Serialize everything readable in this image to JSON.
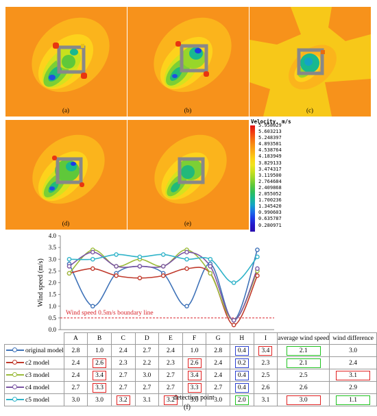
{
  "panels": [
    {
      "label": "(a)"
    },
    {
      "label": "(b)"
    },
    {
      "label": "(c)"
    },
    {
      "label": "(d)"
    },
    {
      "label": "(e)"
    }
  ],
  "legend": {
    "title": "Velocity, m/s",
    "values": [
      "5.958029",
      "5.603213",
      "5.248397",
      "4.893581",
      "4.538764",
      "4.183949",
      "3.829133",
      "3.474317",
      "3.119500",
      "2.764684",
      "2.409868",
      "2.055052",
      "1.700236",
      "1.345420",
      "0.990603",
      "0.635787",
      "0.280971"
    ],
    "colors": [
      "#e01010",
      "#f23a10",
      "#f76a10",
      "#f99212",
      "#fcb015",
      "#fdd215",
      "#f0e41e",
      "#c9e01e",
      "#98d62a",
      "#5fc83a",
      "#2fbf59",
      "#18b890",
      "#14a3c6",
      "#1a6ee8",
      "#1d3ae6",
      "#2418c8",
      "#2a0fb0"
    ]
  },
  "chart_data": {
    "type": "line",
    "categories": [
      "A",
      "B",
      "C",
      "D",
      "E",
      "F",
      "G",
      "H",
      "I"
    ],
    "ylabel": "Wind speed (m/s)",
    "xlabel": "detection point",
    "ylim": [
      0.0,
      4.0
    ],
    "yticks": [
      "0.0",
      "0.5",
      "1.0",
      "1.5",
      "2.0",
      "2.5",
      "3.0",
      "3.5",
      "4.0"
    ],
    "threshold": {
      "value": 0.5,
      "label": "Wind speed 0.5m/s boundary line",
      "color": "#d9232a"
    },
    "series": [
      {
        "name": "original model",
        "color": "#3e72b8",
        "values": [
          2.8,
          1.0,
          2.4,
          2.7,
          2.4,
          1.0,
          2.8,
          0.4,
          3.4
        ]
      },
      {
        "name": "c2 model",
        "color": "#c0392b",
        "values": [
          2.4,
          2.6,
          2.3,
          2.2,
          2.3,
          2.6,
          2.4,
          0.2,
          2.3
        ]
      },
      {
        "name": "c3 model",
        "color": "#9bbb3b",
        "values": [
          2.4,
          3.4,
          2.7,
          3.0,
          2.7,
          3.4,
          2.4,
          0.4,
          2.5
        ]
      },
      {
        "name": "c4 model",
        "color": "#7b55a3",
        "values": [
          2.7,
          3.3,
          2.7,
          2.7,
          2.7,
          3.3,
          2.7,
          0.4,
          2.6
        ]
      },
      {
        "name": "c5 model",
        "color": "#2fb3c9",
        "values": [
          3.0,
          3.0,
          3.2,
          3.1,
          3.2,
          3.0,
          3.0,
          2.0,
          3.1
        ]
      }
    ]
  },
  "table": {
    "headers": [
      "A",
      "B",
      "C",
      "D",
      "E",
      "F",
      "G",
      "H",
      "I",
      "average wind speed",
      "wind difference"
    ],
    "rows": [
      {
        "label": "original model",
        "cells": [
          "2.8",
          "1.0",
          "2.4",
          "2.7",
          "2.4",
          "1.0",
          "2.8",
          "0.4",
          "3.4",
          "2.1",
          "3.0"
        ],
        "boxes": [
          "",
          "",
          "",
          "",
          "",
          "",
          "",
          "blue",
          "red",
          "green",
          ""
        ]
      },
      {
        "label": "c2 model",
        "cells": [
          "2.4",
          "2.6",
          "2.3",
          "2.2",
          "2.3",
          "2.6",
          "2.4",
          "0.2",
          "2.3",
          "2.1",
          "2.4"
        ],
        "boxes": [
          "",
          "red",
          "",
          "",
          "",
          "red",
          "",
          "blue",
          "",
          "green",
          ""
        ]
      },
      {
        "label": "c3 model",
        "cells": [
          "2.4",
          "3.4",
          "2.7",
          "3.0",
          "2.7",
          "3.4",
          "2.4",
          "0.4",
          "2.5",
          "2.5",
          "3.1"
        ],
        "boxes": [
          "",
          "red",
          "",
          "",
          "",
          "red",
          "",
          "blue",
          "",
          "",
          "red"
        ]
      },
      {
        "label": "c4 model",
        "cells": [
          "2.7",
          "3.3",
          "2.7",
          "2.7",
          "2.7",
          "3.3",
          "2.7",
          "0.4",
          "2.6",
          "2.6",
          "2.9"
        ],
        "boxes": [
          "",
          "red",
          "",
          "",
          "",
          "red",
          "",
          "blue",
          "",
          "",
          ""
        ]
      },
      {
        "label": "c5 model",
        "cells": [
          "3.0",
          "3.0",
          "3.2",
          "3.1",
          "3.2",
          "3.0",
          "3.0",
          "2.0",
          "3.1",
          "3.0",
          "1.1"
        ],
        "boxes": [
          "",
          "",
          "red",
          "",
          "red",
          "",
          "",
          "green",
          "",
          "red",
          "green"
        ]
      }
    ]
  },
  "figure_label": "(f)"
}
